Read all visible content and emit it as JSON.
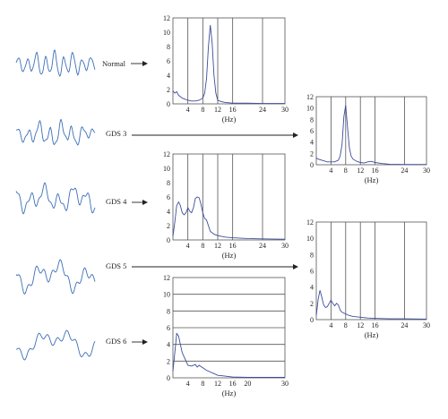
{
  "rows": [
    {
      "label": "Normal"
    },
    {
      "label": "GDS 3"
    },
    {
      "label": "GDS 4"
    },
    {
      "label": "GDS 5"
    },
    {
      "label": "GDS 6"
    }
  ],
  "chart_data": [
    {
      "type": "line",
      "group": "Normal",
      "xlabel": "(Hz)",
      "ylim": [
        0,
        12
      ],
      "xlim": [
        0,
        30
      ],
      "y_ticks": [
        "0",
        "2",
        "4",
        "6",
        "8",
        "10",
        "12"
      ],
      "x_ticks": [
        "4",
        "8",
        "12",
        "16",
        "24",
        "30"
      ],
      "grid": "vertical",
      "series": [
        {
          "x": [
            0,
            0.5,
            1,
            1.5,
            2,
            2.5,
            3,
            4,
            5,
            6,
            7,
            8,
            8.5,
            9,
            9.5,
            10,
            10.5,
            11,
            11.5,
            12,
            13,
            14,
            16,
            20,
            24,
            30
          ],
          "y": [
            1.8,
            1.5,
            1.7,
            1.2,
            1.0,
            0.8,
            0.7,
            0.5,
            0.4,
            0.4,
            0.5,
            0.8,
            1.5,
            3.5,
            8.0,
            11.0,
            8.5,
            4.0,
            1.5,
            0.5,
            0.3,
            0.2,
            0.1,
            0.1,
            0.05,
            0.05
          ]
        }
      ]
    },
    {
      "type": "line",
      "group": "GDS 3",
      "xlabel": "(Hz)",
      "ylim": [
        0,
        12
      ],
      "xlim": [
        0,
        30
      ],
      "y_ticks": [
        "0",
        "2",
        "4",
        "6",
        "8",
        "10",
        "12"
      ],
      "x_ticks": [
        "4",
        "8",
        "12",
        "16",
        "24",
        "30"
      ],
      "grid": "vertical",
      "series": [
        {
          "x": [
            0,
            0.5,
            1,
            2,
            3,
            4,
            5,
            6,
            6.5,
            7,
            7.5,
            8,
            8.5,
            9,
            9.5,
            10,
            11,
            12,
            13,
            14,
            15,
            16,
            18,
            20,
            24,
            30
          ],
          "y": [
            1.2,
            1.0,
            0.9,
            0.7,
            0.5,
            0.5,
            0.5,
            0.8,
            1.5,
            3.5,
            8.5,
            10.5,
            6.5,
            3.0,
            1.5,
            1.0,
            0.6,
            0.4,
            0.3,
            0.5,
            0.6,
            0.4,
            0.2,
            0.1,
            0.05,
            0.05
          ]
        }
      ]
    },
    {
      "type": "line",
      "group": "GDS 4",
      "xlabel": "(Hz)",
      "ylim": [
        0,
        12
      ],
      "xlim": [
        0,
        30
      ],
      "y_ticks": [
        "0",
        "2",
        "4",
        "6",
        "8",
        "10",
        "12"
      ],
      "x_ticks": [
        "4",
        "8",
        "12",
        "16",
        "24",
        "30"
      ],
      "grid": "vertical",
      "series": [
        {
          "x": [
            0,
            0.5,
            1,
            1.5,
            2,
            2.5,
            3,
            3.5,
            4,
            4.5,
            5,
            5.5,
            6,
            6.5,
            7,
            7.5,
            8,
            8.5,
            9,
            9.5,
            10,
            11,
            12,
            14,
            16,
            20,
            24,
            30
          ],
          "y": [
            0.5,
            2.5,
            4.8,
            5.3,
            4.8,
            3.8,
            3.5,
            3.8,
            4.5,
            4.0,
            3.8,
            4.5,
            5.8,
            6.0,
            5.9,
            5.0,
            3.8,
            3.0,
            2.8,
            2.0,
            1.2,
            0.8,
            0.6,
            0.4,
            0.3,
            0.2,
            0.15,
            0.1
          ]
        }
      ]
    },
    {
      "type": "line",
      "group": "GDS 5",
      "xlabel": "(Hz)",
      "ylim": [
        0,
        12
      ],
      "xlim": [
        0,
        30
      ],
      "y_ticks": [
        "0",
        "2",
        "4",
        "6",
        "8",
        "10",
        "12"
      ],
      "x_ticks": [
        "4",
        "8",
        "12",
        "16",
        "24",
        "30"
      ],
      "grid": "vertical",
      "series": [
        {
          "x": [
            0,
            0.5,
            1,
            1.5,
            2,
            2.5,
            3,
            3.5,
            4,
            4.5,
            5,
            5.5,
            6,
            6.5,
            7,
            8,
            9,
            10,
            12,
            14,
            16,
            20,
            24,
            30
          ],
          "y": [
            0.5,
            2.5,
            3.6,
            2.8,
            1.8,
            1.5,
            1.6,
            2.0,
            2.4,
            2.0,
            1.7,
            2.0,
            1.8,
            1.2,
            0.9,
            0.7,
            0.5,
            0.4,
            0.3,
            0.2,
            0.15,
            0.1,
            0.1,
            0.05
          ]
        }
      ]
    },
    {
      "type": "line",
      "group": "GDS 6",
      "xlabel": "(Hz)",
      "ylim": [
        0,
        12
      ],
      "xlim": [
        0,
        30
      ],
      "y_ticks": [
        "0",
        "2",
        "4",
        "6",
        "8",
        "10",
        "12"
      ],
      "x_ticks": [
        "4",
        "8",
        "12",
        "16",
        "20",
        "30"
      ],
      "grid": "horizontal",
      "series": [
        {
          "x": [
            0,
            0.5,
            1,
            1.5,
            2,
            2.5,
            3,
            3.5,
            4,
            5,
            6,
            6.5,
            7,
            8,
            9,
            10,
            11,
            12,
            14,
            16,
            20,
            30
          ],
          "y": [
            0.8,
            3.0,
            5.3,
            5.0,
            4.0,
            3.0,
            2.5,
            2.0,
            1.5,
            1.4,
            1.6,
            1.3,
            1.5,
            1.2,
            0.9,
            0.7,
            0.5,
            0.3,
            0.2,
            0.1,
            0.05,
            0.05
          ]
        }
      ]
    }
  ]
}
